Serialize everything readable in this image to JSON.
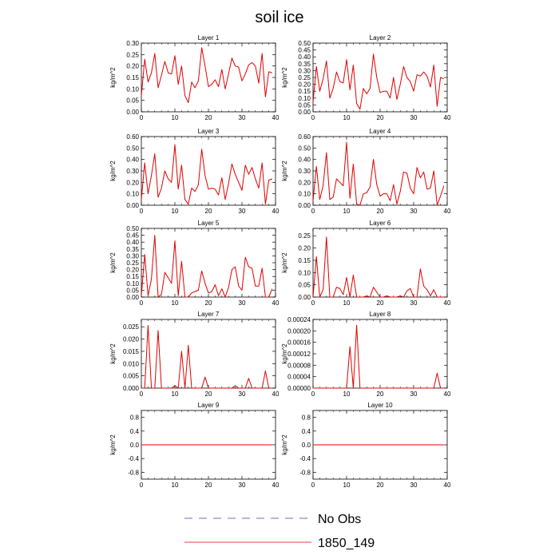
{
  "figure": {
    "title": "soil ice"
  },
  "legend": {
    "items": [
      {
        "label": "No Obs",
        "color": "#3b3bb0",
        "style": "dashed"
      },
      {
        "label": "1850_149",
        "color": "#e00000",
        "style": "solid"
      }
    ]
  },
  "chart_data": [
    {
      "type": "line",
      "title": "Layer 1",
      "ylabel": "kg/m^2",
      "xlim": [
        0,
        40
      ],
      "ylim": [
        0,
        0.3
      ],
      "xticks": [
        "0",
        "10",
        "20",
        "30",
        "40"
      ],
      "yticks": [
        "0.00",
        "0.05",
        "0.10",
        "0.15",
        "0.20",
        "0.25",
        "0.30"
      ],
      "series": [
        {
          "name": "1850_149",
          "color": "#e00000",
          "x": [
            0,
            1,
            2,
            3,
            4,
            5,
            6,
            7,
            8,
            9,
            10,
            11,
            12,
            13,
            14,
            15,
            16,
            17,
            18,
            19,
            20,
            21,
            22,
            23,
            24,
            25,
            26,
            27,
            28,
            29,
            30,
            31,
            32,
            33,
            34,
            35,
            36,
            37,
            38,
            39
          ],
          "y": [
            0.07,
            0.23,
            0.13,
            0.17,
            0.255,
            0.105,
            0.16,
            0.22,
            0.17,
            0.165,
            0.245,
            0.12,
            0.2,
            0.07,
            0.04,
            0.13,
            0.105,
            0.135,
            0.28,
            0.2,
            0.11,
            0.12,
            0.14,
            0.11,
            0.185,
            0.1,
            0.165,
            0.235,
            0.2,
            0.195,
            0.135,
            0.165,
            0.205,
            0.215,
            0.2,
            0.125,
            0.255,
            0.065,
            0.175,
            0.17
          ]
        }
      ]
    },
    {
      "type": "line",
      "title": "Layer 2",
      "ylabel": "kg/m^2",
      "xlim": [
        0,
        40
      ],
      "ylim": [
        0,
        0.5
      ],
      "xticks": [
        "0",
        "10",
        "20",
        "30",
        "40"
      ],
      "yticks": [
        "0.00",
        "0.05",
        "0.10",
        "0.15",
        "0.20",
        "0.25",
        "0.30",
        "0.35",
        "0.40",
        "0.45",
        "0.50"
      ],
      "series": [
        {
          "name": "1850_149",
          "color": "#e00000",
          "x": [
            0,
            1,
            2,
            3,
            4,
            5,
            6,
            7,
            8,
            9,
            10,
            11,
            12,
            13,
            14,
            15,
            16,
            17,
            18,
            19,
            20,
            21,
            22,
            23,
            24,
            25,
            26,
            27,
            28,
            29,
            30,
            31,
            32,
            33,
            34,
            35,
            36,
            37,
            38,
            39
          ],
          "y": [
            0.07,
            0.33,
            0.15,
            0.24,
            0.37,
            0.1,
            0.17,
            0.29,
            0.22,
            0.21,
            0.38,
            0.16,
            0.34,
            0.06,
            0.02,
            0.17,
            0.13,
            0.17,
            0.42,
            0.25,
            0.14,
            0.15,
            0.15,
            0.1,
            0.25,
            0.09,
            0.2,
            0.33,
            0.25,
            0.22,
            0.15,
            0.27,
            0.26,
            0.29,
            0.26,
            0.18,
            0.34,
            0.04,
            0.25,
            0.24
          ]
        }
      ]
    },
    {
      "type": "line",
      "title": "Layer 3",
      "ylabel": "kg/m^2",
      "xlim": [
        0,
        40
      ],
      "ylim": [
        0,
        0.6
      ],
      "xticks": [
        "0",
        "10",
        "20",
        "30",
        "40"
      ],
      "yticks": [
        "0.00",
        "0.10",
        "0.20",
        "0.30",
        "0.40",
        "0.50",
        "0.60"
      ],
      "series": [
        {
          "name": "1850_149",
          "color": "#e00000",
          "x": [
            0,
            1,
            2,
            3,
            4,
            5,
            6,
            7,
            8,
            9,
            10,
            11,
            12,
            13,
            14,
            15,
            16,
            17,
            18,
            19,
            20,
            21,
            22,
            23,
            24,
            25,
            26,
            27,
            28,
            29,
            30,
            31,
            32,
            33,
            34,
            35,
            36,
            37,
            38,
            39
          ],
          "y": [
            0.05,
            0.37,
            0.1,
            0.26,
            0.45,
            0.07,
            0.15,
            0.3,
            0.23,
            0.2,
            0.53,
            0.14,
            0.35,
            0.05,
            0.01,
            0.15,
            0.12,
            0.18,
            0.49,
            0.26,
            0.14,
            0.15,
            0.14,
            0.09,
            0.24,
            0.05,
            0.19,
            0.36,
            0.27,
            0.2,
            0.13,
            0.35,
            0.27,
            0.33,
            0.23,
            0.15,
            0.37,
            0.01,
            0.22,
            0.23
          ]
        }
      ]
    },
    {
      "type": "line",
      "title": "Layer 4",
      "ylabel": "kg/m^2",
      "xlim": [
        0,
        40
      ],
      "ylim": [
        0,
        0.6
      ],
      "xticks": [
        "0",
        "10",
        "20",
        "30",
        "40"
      ],
      "yticks": [
        "0.00",
        "0.10",
        "0.20",
        "0.30",
        "0.40",
        "0.50",
        "0.60"
      ],
      "series": [
        {
          "name": "1850_149",
          "color": "#e00000",
          "x": [
            0,
            1,
            2,
            3,
            4,
            5,
            6,
            7,
            8,
            9,
            10,
            11,
            12,
            13,
            14,
            15,
            16,
            17,
            18,
            19,
            20,
            21,
            22,
            23,
            24,
            25,
            26,
            27,
            28,
            29,
            30,
            31,
            32,
            33,
            34,
            35,
            36,
            37,
            38,
            39
          ],
          "y": [
            0.04,
            0.34,
            0.05,
            0.17,
            0.46,
            0.05,
            0.07,
            0.23,
            0.2,
            0.17,
            0.55,
            0.06,
            0.36,
            0.01,
            0.0,
            0.1,
            0.11,
            0.16,
            0.4,
            0.18,
            0.08,
            0.1,
            0.1,
            0.04,
            0.18,
            0.01,
            0.12,
            0.29,
            0.28,
            0.15,
            0.1,
            0.33,
            0.24,
            0.29,
            0.14,
            0.15,
            0.3,
            0.0,
            0.08,
            0.17
          ]
        }
      ]
    },
    {
      "type": "line",
      "title": "Layer 5",
      "ylabel": "kg/m^2",
      "xlim": [
        0,
        40
      ],
      "ylim": [
        0,
        0.5
      ],
      "xticks": [
        "0",
        "10",
        "20",
        "30",
        "40"
      ],
      "yticks": [
        "0.00",
        "0.05",
        "0.10",
        "0.15",
        "0.20",
        "0.25",
        "0.30",
        "0.35",
        "0.40",
        "0.45",
        "0.50"
      ],
      "series": [
        {
          "name": "1850_149",
          "color": "#e00000",
          "x": [
            0,
            1,
            2,
            3,
            4,
            5,
            6,
            7,
            8,
            9,
            10,
            11,
            12,
            13,
            14,
            15,
            16,
            17,
            18,
            19,
            20,
            21,
            22,
            23,
            24,
            25,
            26,
            27,
            28,
            29,
            30,
            31,
            32,
            33,
            34,
            35,
            36,
            37,
            38,
            39
          ],
          "y": [
            0.01,
            0.31,
            0.01,
            0.13,
            0.45,
            0.0,
            0.02,
            0.18,
            0.14,
            0.1,
            0.41,
            0.01,
            0.26,
            0.0,
            0.0,
            0.03,
            0.04,
            0.05,
            0.19,
            0.1,
            0.03,
            0.04,
            0.09,
            0.01,
            0.06,
            0.0,
            0.07,
            0.2,
            0.22,
            0.08,
            0.05,
            0.29,
            0.22,
            0.21,
            0.08,
            0.08,
            0.21,
            0.0,
            0.0,
            0.06
          ]
        }
      ]
    },
    {
      "type": "line",
      "title": "Layer 6",
      "ylabel": "kg/m^2",
      "xlim": [
        0,
        40
      ],
      "ylim": [
        0,
        0.28
      ],
      "xticks": [
        "0",
        "10",
        "20",
        "30",
        "40"
      ],
      "yticks": [
        "0.00",
        "0.05",
        "0.10",
        "0.15",
        "0.20",
        "0.25"
      ],
      "series": [
        {
          "name": "1850_149",
          "color": "#e00000",
          "x": [
            0,
            1,
            2,
            3,
            4,
            5,
            6,
            7,
            8,
            9,
            10,
            11,
            12,
            13,
            14,
            15,
            16,
            17,
            18,
            19,
            20,
            21,
            22,
            23,
            24,
            25,
            26,
            27,
            28,
            29,
            30,
            31,
            32,
            33,
            34,
            35,
            36,
            37,
            38,
            39
          ],
          "y": [
            0.0,
            0.165,
            0.0,
            0.03,
            0.245,
            0.0,
            0.0,
            0.04,
            0.035,
            0.01,
            0.08,
            0.0,
            0.09,
            0.0,
            0.0,
            0.0,
            0.005,
            0.0,
            0.04,
            0.02,
            0.0,
            0.0,
            0.005,
            0.0,
            0.0,
            0.0,
            0.005,
            0.0,
            0.025,
            0.035,
            0.0,
            0.0,
            0.115,
            0.045,
            0.03,
            0.005,
            0.03,
            0.0,
            0.0,
            0.0
          ]
        }
      ]
    },
    {
      "type": "line",
      "title": "Layer 7",
      "ylabel": "kg/m^2",
      "xlim": [
        0,
        40
      ],
      "ylim": [
        0,
        0.028
      ],
      "xticks": [
        "0",
        "10",
        "20",
        "30",
        "40"
      ],
      "yticks": [
        "0.000",
        "0.005",
        "0.010",
        "0.015",
        "0.020",
        "0.025"
      ],
      "series": [
        {
          "name": "1850_149",
          "color": "#e00000",
          "x": [
            0,
            1,
            2,
            3,
            4,
            5,
            6,
            7,
            8,
            9,
            10,
            11,
            12,
            13,
            14,
            15,
            16,
            17,
            18,
            19,
            20,
            21,
            22,
            23,
            24,
            25,
            26,
            27,
            28,
            29,
            30,
            31,
            32,
            33,
            34,
            35,
            36,
            37,
            38,
            39
          ],
          "y": [
            0.0,
            0.0,
            0.0255,
            0.0,
            0.0,
            0.0235,
            0.0,
            0.0,
            0.0,
            0.0,
            0.001,
            0.0,
            0.015,
            0.0,
            0.0175,
            0.0,
            0.0,
            0.0,
            0.0,
            0.0045,
            0.0,
            0.0,
            0.0,
            0.0,
            0.0,
            0.0,
            0.0,
            0.0,
            0.001,
            0.0,
            0.0,
            0.0,
            0.004,
            0.0,
            0.0,
            0.0,
            0.0,
            0.007,
            0.0,
            0.0
          ]
        }
      ]
    },
    {
      "type": "line",
      "title": "Layer 8",
      "ylabel": "kg/m^2",
      "xlim": [
        0,
        40
      ],
      "ylim": [
        0,
        0.00024
      ],
      "xticks": [
        "0",
        "10",
        "20",
        "30",
        "40"
      ],
      "yticks": [
        "0.00000",
        "0.00004",
        "0.00008",
        "0.00012",
        "0.00016",
        "0.00020",
        "0.00024"
      ],
      "series": [
        {
          "name": "1850_149",
          "color": "#e00000",
          "x": [
            0,
            1,
            2,
            3,
            4,
            5,
            6,
            7,
            8,
            9,
            10,
            11,
            12,
            13,
            14,
            15,
            16,
            17,
            18,
            19,
            20,
            21,
            22,
            23,
            24,
            25,
            26,
            27,
            28,
            29,
            30,
            31,
            32,
            33,
            34,
            35,
            36,
            37,
            38,
            39
          ],
          "y": [
            0,
            0,
            0,
            0,
            0,
            0,
            0,
            0,
            0,
            0,
            0,
            0.000145,
            0,
            0.00022,
            0,
            0,
            0,
            0,
            0,
            0,
            0,
            0,
            0,
            0,
            0,
            0,
            0,
            0,
            0,
            0,
            0,
            0,
            0,
            0,
            0,
            0,
            0,
            5.2e-05,
            0,
            0
          ]
        }
      ]
    },
    {
      "type": "line",
      "title": "Layer 9",
      "ylabel": "kg/m^2",
      "xlim": [
        0,
        40
      ],
      "ylim": [
        -1,
        1
      ],
      "xticks": [
        "0",
        "10",
        "20",
        "30",
        "40"
      ],
      "yticks": [
        "-0.8",
        "-0.4",
        "0.0",
        "0.4",
        "0.8"
      ],
      "series": [
        {
          "name": "1850_149",
          "color": "#e00000",
          "x": [
            0,
            1,
            2,
            3,
            4,
            5,
            6,
            7,
            8,
            9,
            10,
            11,
            12,
            13,
            14,
            15,
            16,
            17,
            18,
            19,
            20,
            21,
            22,
            23,
            24,
            25,
            26,
            27,
            28,
            29,
            30,
            31,
            32,
            33,
            34,
            35,
            36,
            37,
            38,
            39
          ],
          "y": [
            0,
            0,
            0,
            0,
            0,
            0,
            0,
            0,
            0,
            0,
            0,
            0,
            0,
            0,
            0,
            0,
            0,
            0,
            0,
            0,
            0,
            0,
            0,
            0,
            0,
            0,
            0,
            0,
            0,
            0,
            0,
            0,
            0,
            0,
            0,
            0,
            0,
            0,
            0,
            0
          ]
        }
      ]
    },
    {
      "type": "line",
      "title": "Layer 10",
      "ylabel": "kg/m^2",
      "xlim": [
        0,
        40
      ],
      "ylim": [
        -1,
        1
      ],
      "xticks": [
        "0",
        "10",
        "20",
        "30",
        "40"
      ],
      "yticks": [
        "-0.8",
        "-0.4",
        "0.0",
        "0.4",
        "0.8"
      ],
      "series": [
        {
          "name": "1850_149",
          "color": "#e00000",
          "x": [
            0,
            1,
            2,
            3,
            4,
            5,
            6,
            7,
            8,
            9,
            10,
            11,
            12,
            13,
            14,
            15,
            16,
            17,
            18,
            19,
            20,
            21,
            22,
            23,
            24,
            25,
            26,
            27,
            28,
            29,
            30,
            31,
            32,
            33,
            34,
            35,
            36,
            37,
            38,
            39
          ],
          "y": [
            0,
            0,
            0,
            0,
            0,
            0,
            0,
            0,
            0,
            0,
            0,
            0,
            0,
            0,
            0,
            0,
            0,
            0,
            0,
            0,
            0,
            0,
            0,
            0,
            0,
            0,
            0,
            0,
            0,
            0,
            0,
            0,
            0,
            0,
            0,
            0,
            0,
            0,
            0,
            0
          ]
        }
      ]
    }
  ]
}
